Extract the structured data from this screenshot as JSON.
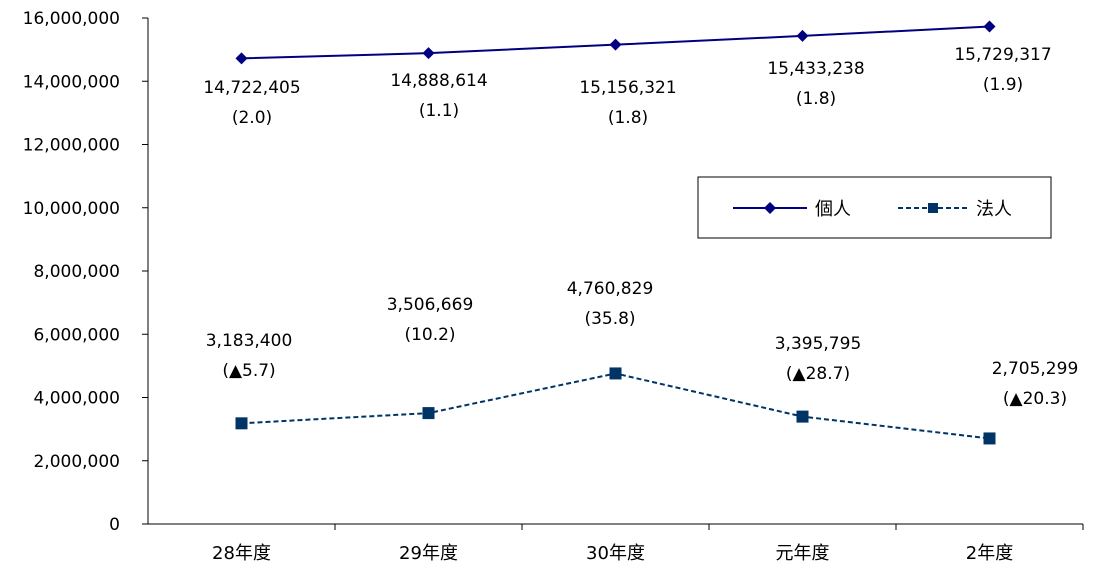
{
  "chart_data": {
    "type": "line",
    "categories": [
      "28年度",
      "29年度",
      "30年度",
      "元年度",
      "2年度"
    ],
    "ylim": [
      0,
      16000000
    ],
    "yticks": [
      "0",
      "2,000,000",
      "4,000,000",
      "6,000,000",
      "8,000,000",
      "10,000,000",
      "12,000,000",
      "14,000,000",
      "16,000,000"
    ],
    "ytick_values": [
      0,
      2000000,
      4000000,
      6000000,
      8000000,
      10000000,
      12000000,
      14000000,
      16000000
    ],
    "grid": false,
    "legend_position": "right",
    "series": [
      {
        "name": "個人",
        "values": [
          14722405,
          14888614,
          15156321,
          15433238,
          15729317
        ],
        "value_labels": [
          "14,722,405",
          "14,888,614",
          "15,156,321",
          "15,433,238",
          "15,729,317"
        ],
        "change_labels": [
          "(2.0)",
          "(1.1)",
          "(1.8)",
          "(1.8)",
          "(1.9)"
        ],
        "color": "#000080",
        "line_style": "solid",
        "marker": "diamond"
      },
      {
        "name": "法人",
        "values": [
          3183400,
          3506669,
          4760829,
          3395795,
          2705299
        ],
        "value_labels": [
          "3,183,400",
          "3,506,669",
          "4,760,829",
          "3,395,795",
          "2,705,299"
        ],
        "change_labels": [
          "(▲5.7)",
          "(10.2)",
          "(35.8)",
          "(▲28.7)",
          "(▲20.3)"
        ],
        "color": "#003366",
        "line_style": "dashed",
        "marker": "square"
      }
    ]
  }
}
